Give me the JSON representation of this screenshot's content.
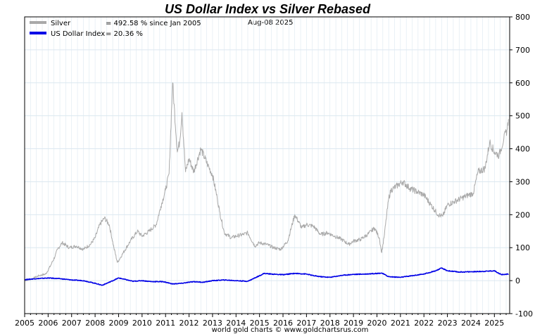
{
  "chart_data": {
    "type": "line",
    "title": "US Dollar Index vs Silver Rebased",
    "date_label": "Aug-08  2025",
    "footer": "world gold charts © www.goldchartsrus.com",
    "colors": {
      "title": "#1a1ae6",
      "silver": "#a9a9a9",
      "usd": "#0000e6",
      "grid": "#dce8f0",
      "axis": "#000000"
    },
    "ylim": [
      -100,
      800
    ],
    "yticks": [
      -100,
      0,
      100,
      200,
      300,
      400,
      500,
      600,
      700,
      800
    ],
    "ytick_labels": [
      "-100",
      "0",
      "100",
      "200",
      "300",
      "400",
      "500",
      "600",
      "700",
      "800"
    ],
    "xlim": [
      2005.0,
      2025.65
    ],
    "xticks": [
      2005,
      2006,
      2007,
      2008,
      2009,
      2010,
      2011,
      2012,
      2013,
      2014,
      2015,
      2016,
      2017,
      2018,
      2019,
      2020,
      2021,
      2022,
      2023,
      2024,
      2025
    ],
    "xtick_labels": [
      "2005",
      "2006",
      "2007",
      "2008",
      "2009",
      "2010",
      "2011",
      "2012",
      "2013",
      "2014",
      "2015",
      "2016",
      "2017",
      "2018",
      "2019",
      "2020",
      "2021",
      "2022",
      "2023",
      "2024",
      "2025"
    ],
    "legend": [
      {
        "name": "Silver",
        "note": "= 492.58 % since Jan 2005"
      },
      {
        "name": "US Dollar Index",
        "note": "= 20.36 %"
      }
    ],
    "series": [
      {
        "name": "Silver",
        "x": [
          2005.0,
          2005.3,
          2005.6,
          2005.9,
          2006.1,
          2006.3,
          2006.4,
          2006.6,
          2006.9,
          2007.2,
          2007.5,
          2007.8,
          2008.0,
          2008.2,
          2008.4,
          2008.6,
          2008.8,
          2008.95,
          2009.2,
          2009.5,
          2009.8,
          2010.0,
          2010.3,
          2010.6,
          2010.8,
          2011.0,
          2011.15,
          2011.3,
          2011.5,
          2011.6,
          2011.7,
          2011.85,
          2012.0,
          2012.2,
          2012.5,
          2012.8,
          2013.0,
          2013.2,
          2013.3,
          2013.5,
          2013.8,
          2014.0,
          2014.3,
          2014.5,
          2014.8,
          2015.0,
          2015.3,
          2015.6,
          2015.9,
          2016.2,
          2016.5,
          2016.8,
          2017.0,
          2017.3,
          2017.6,
          2017.9,
          2018.2,
          2018.5,
          2018.8,
          2019.0,
          2019.3,
          2019.6,
          2019.9,
          2020.1,
          2020.2,
          2020.3,
          2020.5,
          2020.6,
          2020.9,
          2021.1,
          2021.4,
          2021.7,
          2022.0,
          2022.3,
          2022.6,
          2022.8,
          2023.0,
          2023.3,
          2023.6,
          2023.9,
          2024.1,
          2024.3,
          2024.6,
          2024.8,
          2025.0,
          2025.2,
          2025.4,
          2025.55,
          2025.6
        ],
        "values": [
          0,
          5,
          15,
          20,
          45,
          75,
          95,
          115,
          100,
          105,
          95,
          110,
          130,
          170,
          190,
          170,
          100,
          55,
          85,
          120,
          150,
          135,
          150,
          170,
          225,
          275,
          325,
          600,
          390,
          420,
          510,
          330,
          370,
          330,
          400,
          350,
          320,
          250,
          210,
          145,
          130,
          135,
          140,
          145,
          105,
          115,
          110,
          100,
          95,
          120,
          200,
          160,
          170,
          165,
          140,
          145,
          135,
          125,
          110,
          120,
          125,
          140,
          160,
          130,
          85,
          130,
          250,
          275,
          290,
          300,
          280,
          270,
          260,
          230,
          200,
          195,
          230,
          240,
          250,
          260,
          265,
          330,
          340,
          420,
          390,
          380,
          430,
          460,
          490
        ]
      },
      {
        "name": "US Dollar Index",
        "x": [
          2005.0,
          2005.5,
          2006.0,
          2006.5,
          2007.0,
          2007.5,
          2008.0,
          2008.3,
          2008.6,
          2009.0,
          2009.2,
          2009.6,
          2010.0,
          2010.4,
          2010.9,
          2011.3,
          2011.7,
          2012.2,
          2012.6,
          2013.0,
          2013.5,
          2014.0,
          2014.5,
          2015.0,
          2015.2,
          2015.5,
          2016.0,
          2016.5,
          2017.0,
          2017.3,
          2017.6,
          2018.0,
          2018.5,
          2019.0,
          2019.5,
          2020.0,
          2020.2,
          2020.5,
          2021.0,
          2021.5,
          2022.0,
          2022.5,
          2022.75,
          2023.0,
          2023.5,
          2024.0,
          2024.5,
          2025.0,
          2025.3,
          2025.6
        ],
        "values": [
          3,
          6,
          8,
          6,
          2,
          0,
          -8,
          -14,
          -5,
          8,
          5,
          -2,
          0,
          -3,
          -3,
          -10,
          -8,
          -3,
          -5,
          0,
          2,
          0,
          -2,
          15,
          22,
          20,
          18,
          22,
          20,
          15,
          12,
          10,
          16,
          19,
          20,
          22,
          23,
          12,
          10,
          15,
          20,
          30,
          38,
          30,
          26,
          27,
          28,
          30,
          18,
          20
        ]
      }
    ]
  }
}
